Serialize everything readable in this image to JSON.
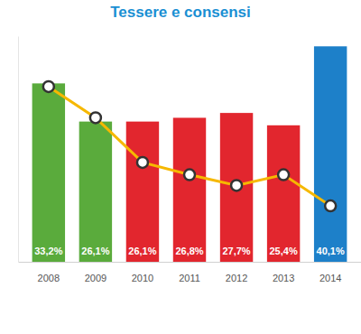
{
  "chart_data": {
    "type": "bar",
    "title": "Tessere e consensi",
    "categories": [
      "2008",
      "2009",
      "2010",
      "2011",
      "2012",
      "2013",
      "2014"
    ],
    "series": [
      {
        "type": "bar",
        "colors": [
          "#5aab3c",
          "#5aab3c",
          "#e2262e",
          "#e2262e",
          "#e2262e",
          "#e2262e",
          "#1d80c9"
        ],
        "values": [
          33.2,
          26.1,
          26.1,
          26.8,
          27.7,
          25.4,
          40.1
        ],
        "value_labels": [
          "33,2%",
          "26,1%",
          "26,1%",
          "26,8%",
          "27,7%",
          "25,4%",
          "40,1%"
        ]
      },
      {
        "type": "line",
        "color": "#f6b800",
        "marker": "circle",
        "values": [
          32.6,
          26.8,
          18.5,
          16.2,
          14.2,
          16.2,
          10.4
        ]
      }
    ],
    "ylim": [
      0,
      42
    ],
    "yticks": [],
    "data_labels": true,
    "tick_labels": "x",
    "grid": false
  }
}
